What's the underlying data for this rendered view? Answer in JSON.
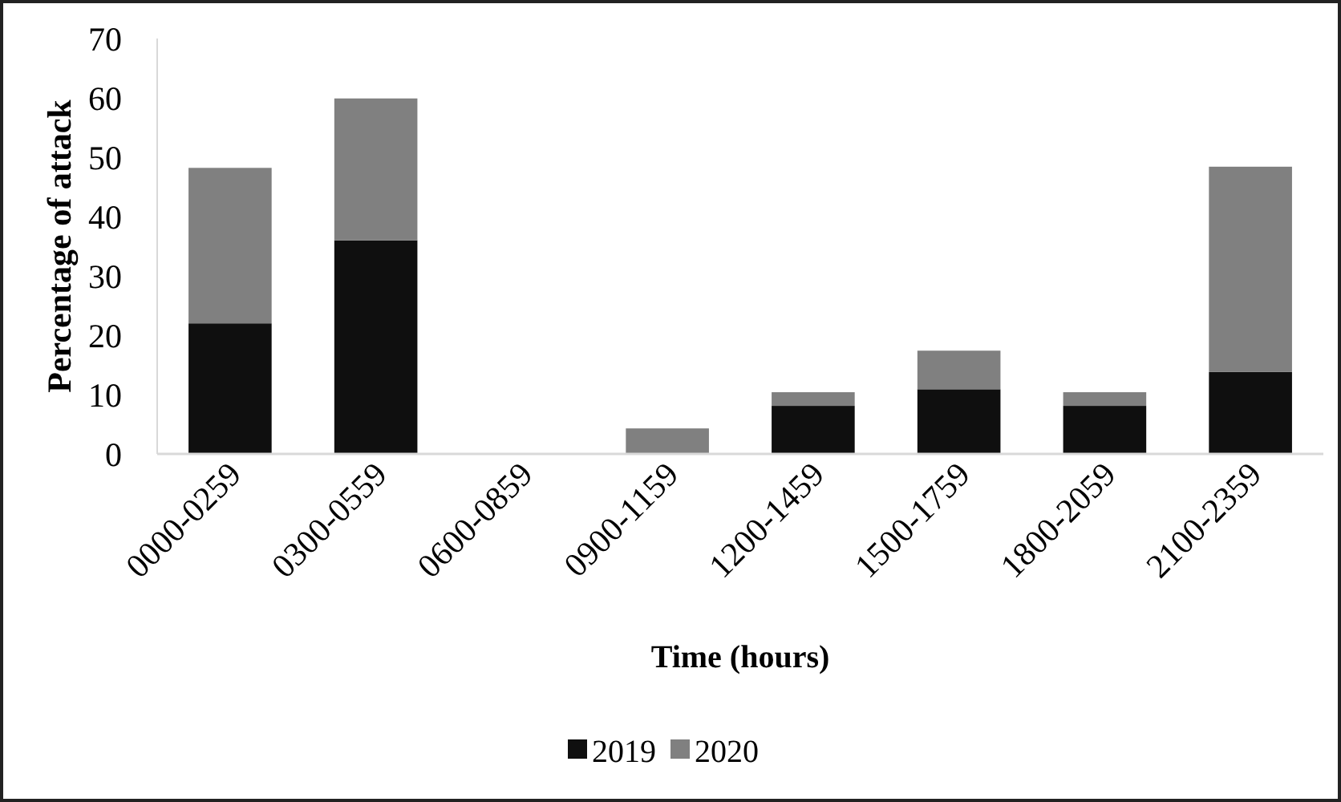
{
  "chart_data": {
    "type": "bar",
    "stacked": true,
    "xlabel": "Time (hours)",
    "ylabel": "Percentage of attack",
    "categories": [
      "0000-0259",
      "0300-0559",
      "0600-0859",
      "0900-1159",
      "1200-1459",
      "1500-1759",
      "1800-2059",
      "2100-2359"
    ],
    "series": [
      {
        "name": "2019",
        "color": "#0f0f0f",
        "values": [
          22.0,
          36.0,
          0,
          0,
          8.1,
          10.9,
          8.1,
          13.8
        ]
      },
      {
        "name": "2020",
        "color": "#808080",
        "values": [
          26.2,
          23.9,
          0,
          4.3,
          2.3,
          6.5,
          2.3,
          34.6
        ]
      }
    ],
    "ylim": [
      0,
      70
    ],
    "yticks": [
      0,
      10,
      20,
      30,
      40,
      50,
      60,
      70
    ],
    "legend": "bottom"
  }
}
